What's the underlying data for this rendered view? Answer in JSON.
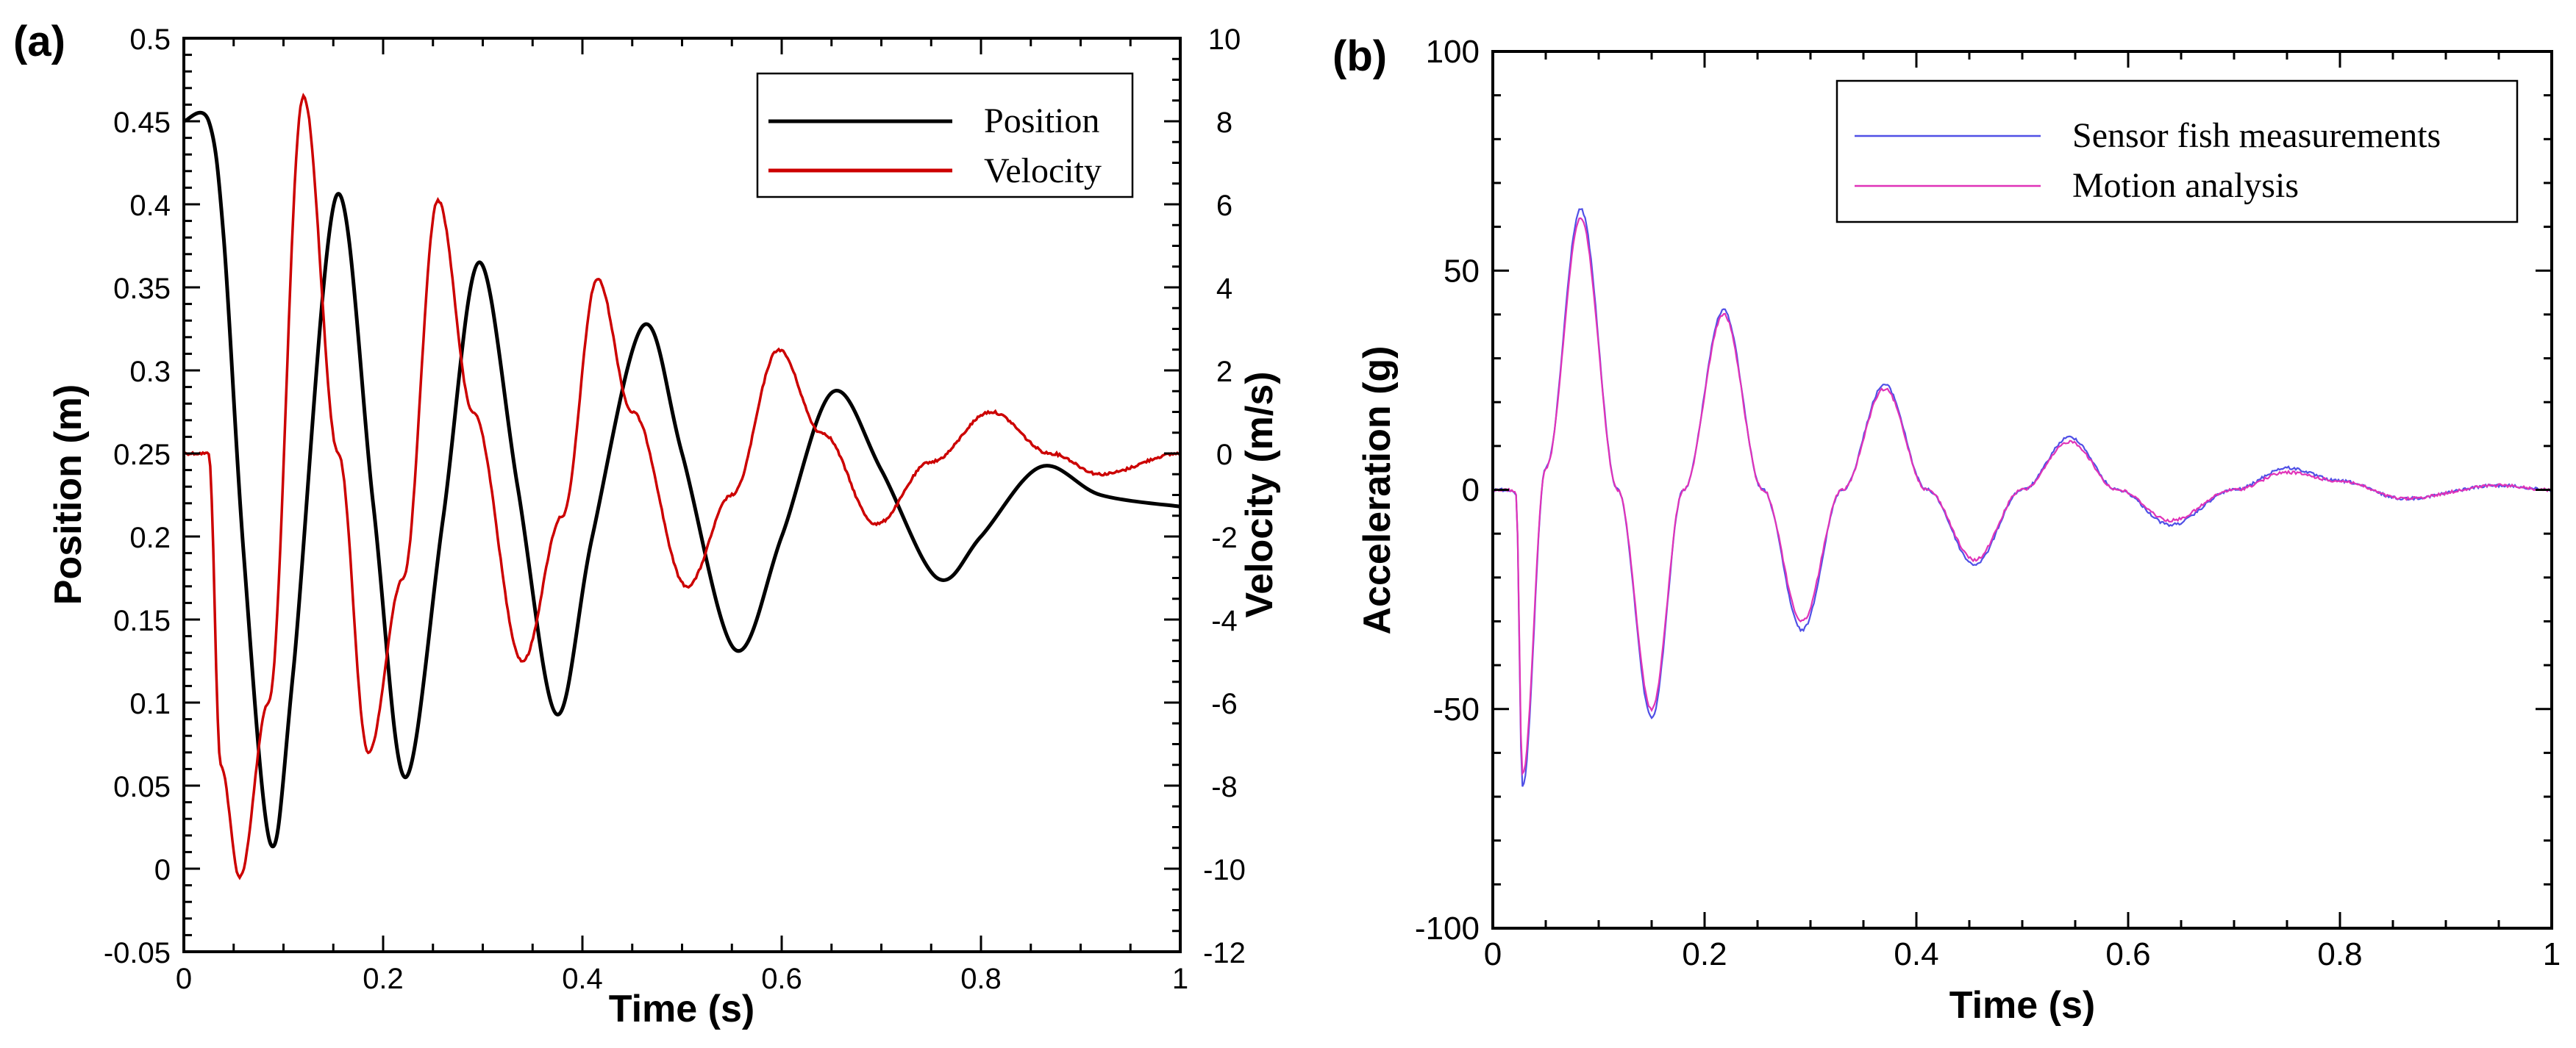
{
  "chart_data": [
    {
      "panel_label": "(a)",
      "type": "line",
      "xlabel": "Time (s)",
      "ylabel": "Position (m)",
      "y2label": "Velocity (m/s)",
      "xlim": [
        0,
        1
      ],
      "ylim": [
        -0.05,
        0.5
      ],
      "y2lim": [
        -12,
        10
      ],
      "xticks": [
        0,
        0.2,
        0.4,
        0.6,
        0.8,
        1
      ],
      "xtick_labels": [
        "0",
        "0.2",
        "0.4",
        "0.6",
        "0.8",
        "1"
      ],
      "yticks": [
        -0.05,
        0,
        0.05,
        0.1,
        0.15,
        0.2,
        0.25,
        0.3,
        0.35,
        0.4,
        0.45,
        0.5
      ],
      "ytick_labels": [
        "-0.05",
        "0",
        "0.05",
        "0.1",
        "0.15",
        "0.2",
        "0.25",
        "0.3",
        "0.35",
        "0.4",
        "0.45",
        "0.5"
      ],
      "y2ticks": [
        -12,
        -10,
        -8,
        -6,
        -4,
        -2,
        0,
        2,
        4,
        6,
        8,
        10
      ],
      "y2tick_labels": [
        "-12",
        "-10",
        "-8",
        "-6",
        "-4",
        "-2",
        "0",
        "2",
        "4",
        "6",
        "8",
        "10"
      ],
      "grid": false,
      "legend_position": "top-right",
      "series": [
        {
          "name": "Position",
          "axis": "left",
          "color": "#000000",
          "x": [
            0,
            0.025,
            0.04,
            0.06,
            0.087,
            0.11,
            0.153,
            0.19,
            0.222,
            0.26,
            0.296,
            0.335,
            0.374,
            0.41,
            0.461,
            0.5,
            0.553,
            0.6,
            0.651,
            0.7,
            0.756,
            0.8,
            0.86,
            0.92,
            1.0
          ],
          "values": [
            0.45,
            0.45,
            0.38,
            0.19,
            0.015,
            0.12,
            0.405,
            0.22,
            0.055,
            0.21,
            0.365,
            0.23,
            0.093,
            0.2,
            0.327,
            0.25,
            0.132,
            0.2,
            0.287,
            0.24,
            0.175,
            0.2,
            0.242,
            0.225,
            0.218
          ]
        },
        {
          "name": "Velocity",
          "axis": "right",
          "color": "#cc0000",
          "x": [
            0,
            0.025,
            0.037,
            0.056,
            0.085,
            0.12,
            0.155,
            0.185,
            0.22,
            0.255,
            0.29,
            0.34,
            0.38,
            0.415,
            0.45,
            0.505,
            0.55,
            0.597,
            0.64,
            0.695,
            0.75,
            0.81,
            0.87,
            0.92,
            1.0
          ],
          "values": [
            0,
            0,
            -7.5,
            -10.2,
            -6,
            8.6,
            0,
            -7.2,
            -3,
            6.1,
            1,
            -5,
            -1.5,
            4.2,
            1,
            -3.2,
            -1,
            2.5,
            0.5,
            -1.7,
            -0.2,
            1,
            0,
            -0.5,
            0
          ]
        }
      ]
    },
    {
      "panel_label": "(b)",
      "type": "line",
      "xlabel": "Time (s)",
      "ylabel": "Acceleration (g)",
      "xlim": [
        0,
        1
      ],
      "ylim": [
        -100,
        100
      ],
      "xticks": [
        0,
        0.2,
        0.4,
        0.6,
        0.8,
        1
      ],
      "xtick_labels": [
        "0",
        "0.2",
        "0.4",
        "0.6",
        "0.8",
        "1"
      ],
      "yticks": [
        -100,
        -50,
        0,
        50,
        100
      ],
      "ytick_labels": [
        "-100",
        "-50",
        "0",
        "50",
        "100"
      ],
      "grid": false,
      "legend_position": "top-right",
      "series": [
        {
          "name": "Sensor fish measurements",
          "color": "#5050e6",
          "x": [
            0,
            0.018,
            0.022,
            0.028,
            0.05,
            0.083,
            0.118,
            0.15,
            0.18,
            0.218,
            0.255,
            0.292,
            0.33,
            0.37,
            0.41,
            0.455,
            0.5,
            0.545,
            0.59,
            0.64,
            0.7,
            0.75,
            0.8,
            0.86,
            0.95,
            1.0
          ],
          "values": [
            0,
            0,
            -1,
            -68,
            5,
            64,
            0,
            -52,
            0,
            41,
            0,
            -32,
            0,
            24,
            0,
            -17,
            0,
            12,
            0,
            -8,
            0,
            5,
            2,
            -2,
            1,
            0
          ]
        },
        {
          "name": "Motion analysis",
          "color": "#e033b8",
          "x": [
            0,
            0.018,
            0.022,
            0.028,
            0.05,
            0.083,
            0.118,
            0.15,
            0.18,
            0.218,
            0.255,
            0.292,
            0.33,
            0.37,
            0.41,
            0.455,
            0.5,
            0.545,
            0.59,
            0.64,
            0.7,
            0.75,
            0.8,
            0.86,
            0.95,
            1.0
          ],
          "values": [
            0,
            0,
            -1,
            -65,
            5,
            62,
            0,
            -50,
            0,
            40,
            0,
            -30,
            0,
            23,
            0,
            -16,
            0,
            11,
            0,
            -7,
            0,
            4,
            2,
            -2,
            1,
            0
          ]
        }
      ]
    }
  ]
}
